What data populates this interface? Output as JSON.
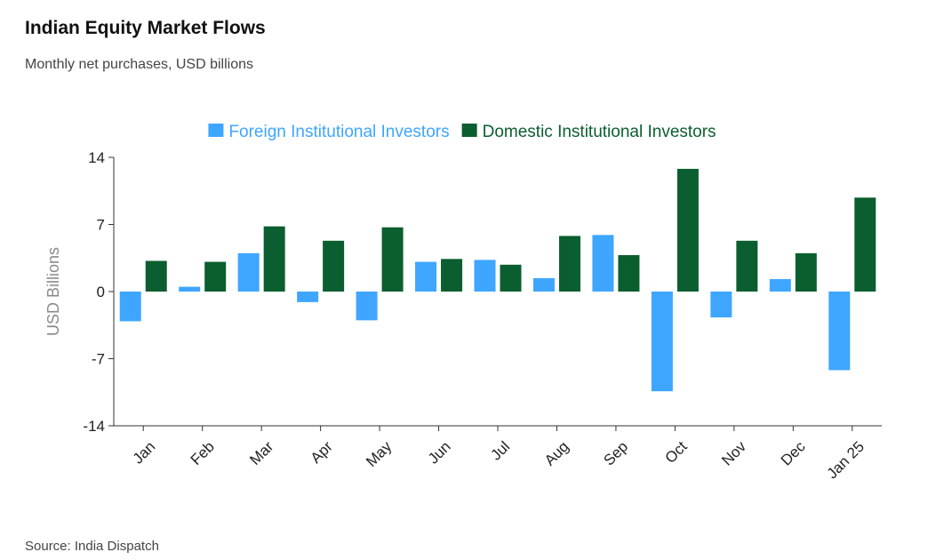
{
  "header": {
    "title": "Indian Equity Market Flows",
    "subtitle": "Monthly net purchases, USD billions"
  },
  "footer": {
    "source": "Source: India Dispatch"
  },
  "chart_data": {
    "type": "bar",
    "title": "Indian Equity Market Flows",
    "subtitle": "Monthly net purchases, USD billions",
    "categories": [
      "Jan",
      "Feb",
      "Mar",
      "Apr",
      "May",
      "Jun",
      "Jul",
      "Aug",
      "Sep",
      "Oct",
      "Nov",
      "Dec",
      "Jan 25"
    ],
    "series": [
      {
        "name": "Foreign Institutional Investors",
        "color": "#3ea6ff",
        "values": [
          -3.1,
          0.5,
          4.0,
          -1.1,
          -3.0,
          3.1,
          3.3,
          1.4,
          5.9,
          -10.4,
          -2.7,
          1.3,
          -8.2
        ]
      },
      {
        "name": "Domestic Institutional Investors",
        "color": "#0b5e2f",
        "values": [
          3.2,
          3.1,
          6.8,
          5.3,
          6.7,
          3.4,
          2.8,
          5.8,
          3.8,
          12.8,
          5.3,
          4.0,
          9.8
        ]
      }
    ],
    "xlabel": "",
    "ylabel": "USD Billions",
    "ylim": [
      -14,
      14
    ],
    "yticks": [
      "14",
      "7",
      "0",
      "-7",
      "-14"
    ],
    "ytick_values": [
      14,
      7,
      0,
      -7,
      -14
    ],
    "grid": false,
    "legend_position": "top-center",
    "x_tick_rotation": "-45deg"
  }
}
